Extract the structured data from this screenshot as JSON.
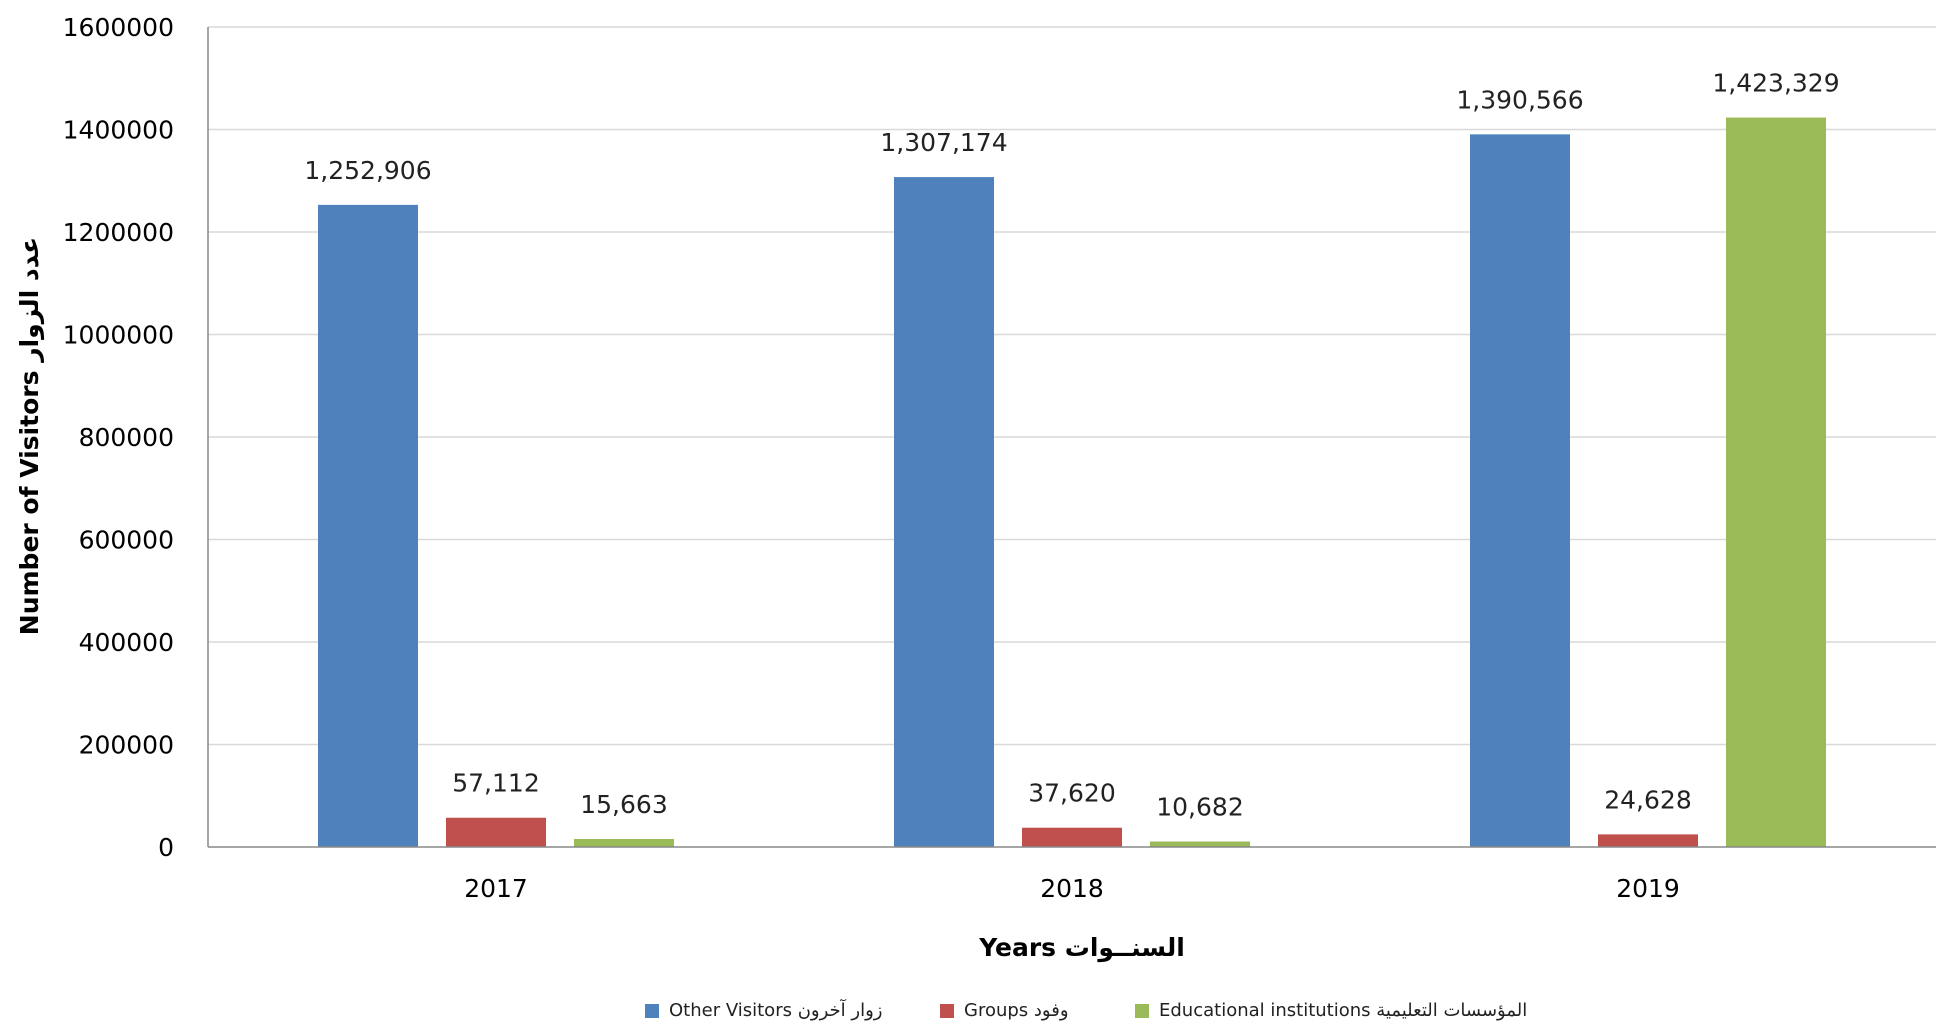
{
  "chart_data": {
    "type": "bar",
    "categories": [
      "2017",
      "2018",
      "2019"
    ],
    "series": [
      {
        "name": "Other Visitors  زوار آخرون",
        "color": "#4F81BD",
        "values": [
          1252906,
          1307174,
          1390566
        ],
        "labels": [
          "1,252,906",
          "1,307,174",
          "1,390,566"
        ]
      },
      {
        "name": "Groups  وفود",
        "color": "#C0504D",
        "values": [
          57112,
          37620,
          24628
        ],
        "labels": [
          "57,112",
          "37,620",
          "24,628"
        ]
      },
      {
        "name": "Educational institutions المؤسسات التعليمية",
        "color": "#9BBB59",
        "values": [
          15663,
          10682,
          1423329
        ],
        "labels": [
          "15,663",
          "10,682",
          "1,423,329"
        ]
      }
    ],
    "ylim": [
      0,
      1600000
    ],
    "yticks": [
      "0",
      "200000",
      "400000",
      "600000",
      "800000",
      "1000000",
      "1200000",
      "1400000",
      "1600000"
    ],
    "xlabel": "Years  السنــوات",
    "ylabel": "Number of  Visitors  عدد الزوار",
    "grid": true,
    "legend_position": "bottom"
  }
}
